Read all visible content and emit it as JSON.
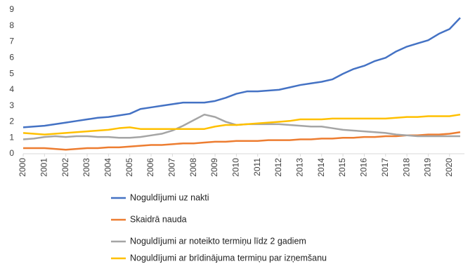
{
  "chart_data": {
    "type": "line",
    "x": [
      2000,
      2000.5,
      2001,
      2001.5,
      2002,
      2002.5,
      2003,
      2003.5,
      2004,
      2004.5,
      2005,
      2005.5,
      2006,
      2006.5,
      2007,
      2007.5,
      2008,
      2008.5,
      2009,
      2009.5,
      2010,
      2010.5,
      2011,
      2011.5,
      2012,
      2012.5,
      2013,
      2013.5,
      2014,
      2014.5,
      2015,
      2015.5,
      2016,
      2016.5,
      2017,
      2017.5,
      2018,
      2018.5,
      2019,
      2019.5,
      2020,
      2020.5
    ],
    "series": [
      {
        "name": "Noguldījumi uz nakti",
        "color": "#4472c4",
        "values": [
          1.65,
          1.7,
          1.75,
          1.85,
          1.95,
          2.05,
          2.15,
          2.25,
          2.3,
          2.4,
          2.5,
          2.8,
          2.9,
          3.0,
          3.1,
          3.2,
          3.2,
          3.2,
          3.3,
          3.5,
          3.75,
          3.9,
          3.9,
          3.95,
          4.0,
          4.15,
          4.3,
          4.4,
          4.5,
          4.65,
          5.0,
          5.3,
          5.5,
          5.8,
          6.0,
          6.4,
          6.7,
          6.9,
          7.1,
          7.5,
          7.8,
          8.5
        ]
      },
      {
        "name": "Skaidrā nauda",
        "color": "#ed7d31",
        "values": [
          0.35,
          0.35,
          0.35,
          0.3,
          0.25,
          0.3,
          0.35,
          0.35,
          0.4,
          0.4,
          0.45,
          0.5,
          0.55,
          0.55,
          0.6,
          0.65,
          0.65,
          0.7,
          0.75,
          0.75,
          0.8,
          0.8,
          0.8,
          0.85,
          0.85,
          0.85,
          0.9,
          0.9,
          0.95,
          0.95,
          1.0,
          1.0,
          1.05,
          1.05,
          1.1,
          1.1,
          1.15,
          1.15,
          1.2,
          1.2,
          1.25,
          1.35
        ]
      },
      {
        "name": "Noguldījumi ar noteikto termiņu  līdz 2 gadiem",
        "color": "#a5a5a5",
        "values": [
          0.9,
          0.95,
          1.05,
          1.1,
          1.05,
          1.1,
          1.1,
          1.05,
          1.05,
          1.0,
          1.0,
          1.05,
          1.15,
          1.25,
          1.45,
          1.75,
          2.1,
          2.45,
          2.3,
          2.0,
          1.8,
          1.85,
          1.85,
          1.85,
          1.85,
          1.8,
          1.75,
          1.7,
          1.7,
          1.6,
          1.5,
          1.45,
          1.4,
          1.35,
          1.3,
          1.2,
          1.15,
          1.1,
          1.1,
          1.1,
          1.1,
          1.1
        ]
      },
      {
        "name": "Noguldījumi ar brīdinājuma termiņu  par izņemšanu",
        "color": "#ffc000",
        "values": [
          1.3,
          1.25,
          1.2,
          1.25,
          1.3,
          1.35,
          1.4,
          1.45,
          1.5,
          1.6,
          1.65,
          1.55,
          1.55,
          1.55,
          1.55,
          1.55,
          1.55,
          1.55,
          1.7,
          1.8,
          1.8,
          1.85,
          1.9,
          1.95,
          2.0,
          2.05,
          2.15,
          2.15,
          2.15,
          2.2,
          2.2,
          2.2,
          2.2,
          2.2,
          2.2,
          2.25,
          2.3,
          2.3,
          2.35,
          2.35,
          2.35,
          2.45
        ]
      }
    ],
    "xlim": [
      2000,
      2020.7
    ],
    "xticks": [
      2000,
      2001,
      2002,
      2003,
      2004,
      2005,
      2006,
      2007,
      2008,
      2009,
      2010,
      2011,
      2012,
      2013,
      2014,
      2015,
      2016,
      2017,
      2018,
      2019,
      2020
    ],
    "ylim": [
      0,
      9
    ],
    "yticks": [
      0,
      1,
      2,
      3,
      4,
      5,
      6,
      7,
      8,
      9
    ],
    "grid": false
  }
}
